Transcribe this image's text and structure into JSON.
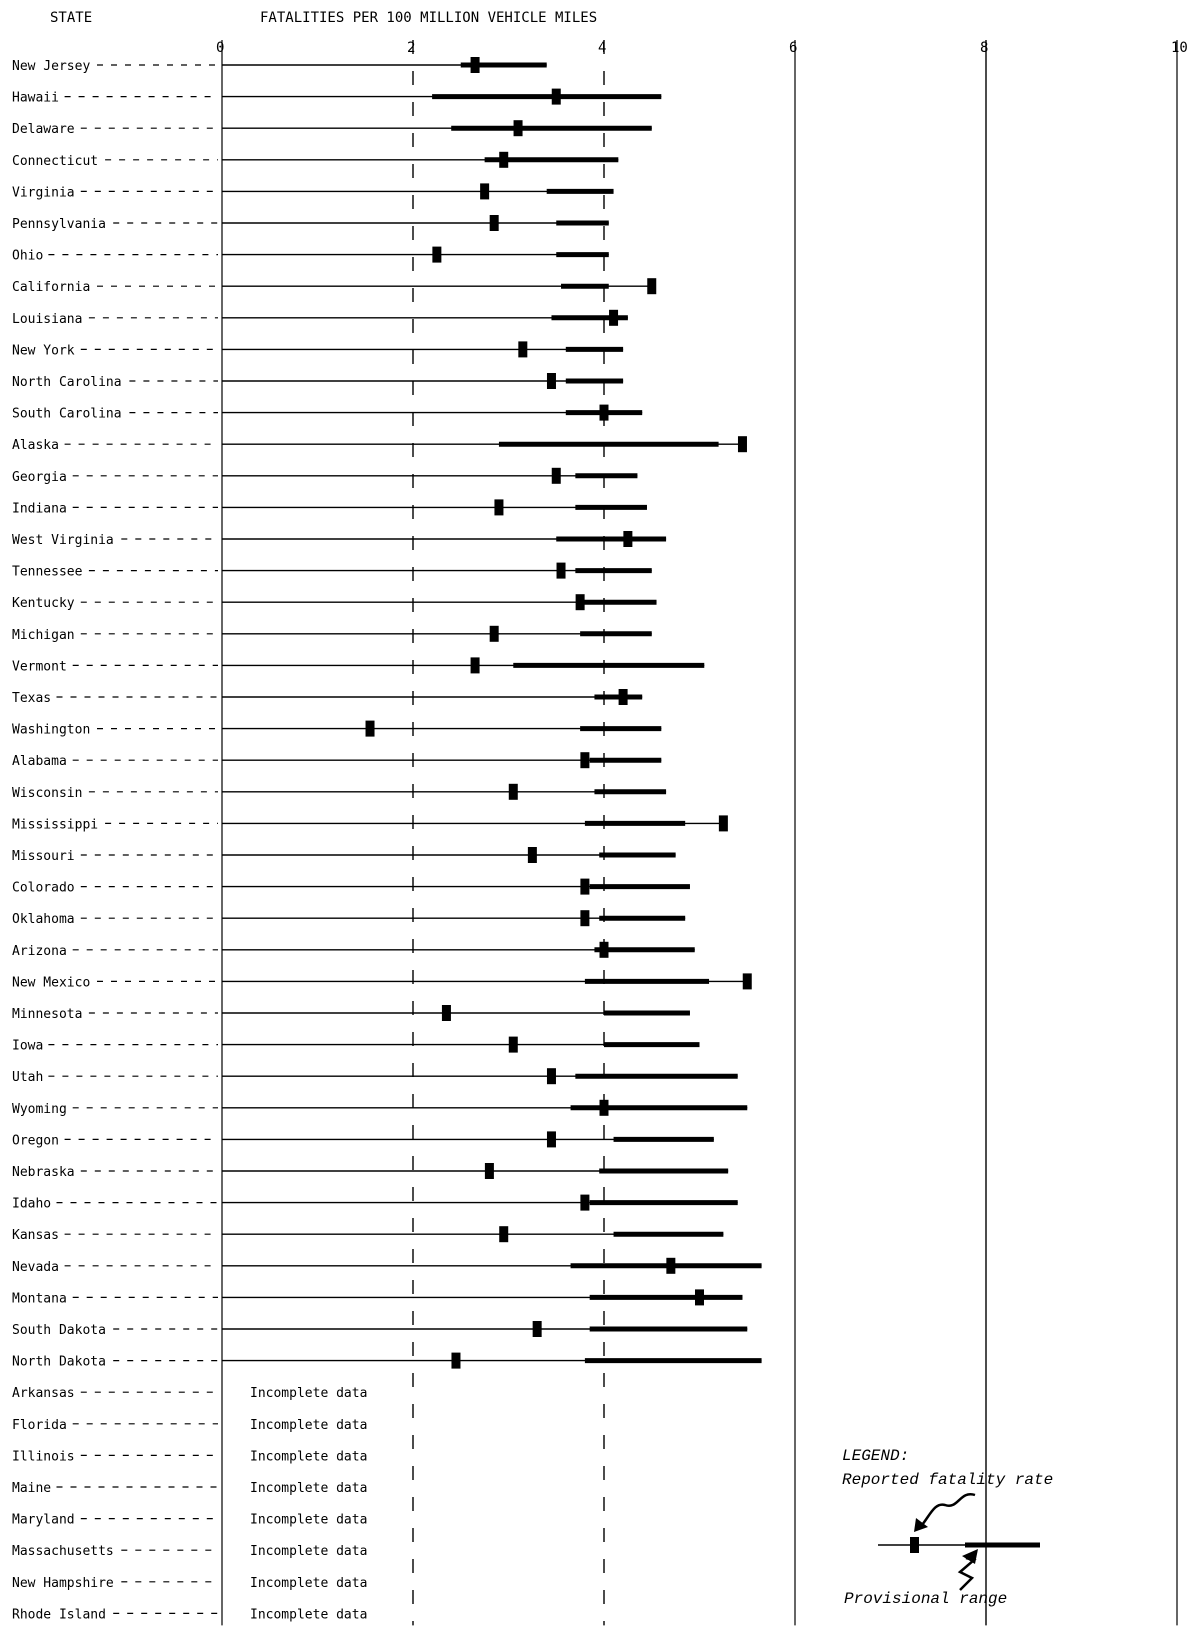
{
  "chart_data": {
    "type": "range-dot",
    "title": "FATALITIES PER 100 MILLION VEHICLE MILES",
    "y_header": "STATE",
    "x_ticks": [
      "0",
      "2",
      "4",
      "6",
      "8",
      "10"
    ],
    "xlim": [
      0,
      10
    ],
    "incomplete_label": "Incomplete data",
    "states": [
      {
        "name": "New Jersey",
        "rate": 2.65,
        "low": 2.5,
        "high": 3.4
      },
      {
        "name": "Hawaii",
        "rate": 3.5,
        "low": 2.2,
        "high": 4.6
      },
      {
        "name": "Delaware",
        "rate": 3.1,
        "low": 2.4,
        "high": 4.5
      },
      {
        "name": "Connecticut",
        "rate": 2.95,
        "low": 2.75,
        "high": 4.15
      },
      {
        "name": "Virginia",
        "rate": 2.75,
        "low": 3.4,
        "high": 4.1
      },
      {
        "name": "Pennsylvania",
        "rate": 2.85,
        "low": 3.5,
        "high": 4.05
      },
      {
        "name": "Ohio",
        "rate": 2.25,
        "low": 3.5,
        "high": 4.05
      },
      {
        "name": "California",
        "rate": 4.5,
        "low": 3.55,
        "high": 4.05
      },
      {
        "name": "Louisiana",
        "rate": 4.1,
        "low": 3.45,
        "high": 4.25
      },
      {
        "name": "New York",
        "rate": 3.15,
        "low": 3.6,
        "high": 4.2
      },
      {
        "name": "North Carolina",
        "rate": 3.45,
        "low": 3.6,
        "high": 4.2
      },
      {
        "name": "South Carolina",
        "rate": 4.0,
        "low": 3.6,
        "high": 4.4
      },
      {
        "name": "Alaska",
        "rate": 5.45,
        "low": 2.9,
        "high": 5.2
      },
      {
        "name": "Georgia",
        "rate": 3.5,
        "low": 3.7,
        "high": 4.35
      },
      {
        "name": "Indiana",
        "rate": 2.9,
        "low": 3.7,
        "high": 4.45
      },
      {
        "name": "West Virginia",
        "rate": 4.25,
        "low": 3.5,
        "high": 4.65
      },
      {
        "name": "Tennessee",
        "rate": 3.55,
        "low": 3.7,
        "high": 4.5
      },
      {
        "name": "Kentucky",
        "rate": 3.75,
        "low": 3.75,
        "high": 4.55
      },
      {
        "name": "Michigan",
        "rate": 2.85,
        "low": 3.75,
        "high": 4.5
      },
      {
        "name": "Vermont",
        "rate": 2.65,
        "low": 3.05,
        "high": 5.05
      },
      {
        "name": "Texas",
        "rate": 4.2,
        "low": 3.9,
        "high": 4.4
      },
      {
        "name": "Washington",
        "rate": 1.55,
        "low": 3.75,
        "high": 4.6
      },
      {
        "name": "Alabama",
        "rate": 3.8,
        "low": 3.85,
        "high": 4.6
      },
      {
        "name": "Wisconsin",
        "rate": 3.05,
        "low": 3.9,
        "high": 4.65
      },
      {
        "name": "Mississippi",
        "rate": 5.25,
        "low": 3.8,
        "high": 4.85
      },
      {
        "name": "Missouri",
        "rate": 3.25,
        "low": 3.95,
        "high": 4.75
      },
      {
        "name": "Colorado",
        "rate": 3.8,
        "low": 3.85,
        "high": 4.9
      },
      {
        "name": "Oklahoma",
        "rate": 3.8,
        "low": 3.95,
        "high": 4.85
      },
      {
        "name": "Arizona",
        "rate": 4.0,
        "low": 3.9,
        "high": 4.95
      },
      {
        "name": "New Mexico",
        "rate": 5.5,
        "low": 3.8,
        "high": 5.1
      },
      {
        "name": "Minnesota",
        "rate": 2.35,
        "low": 4.0,
        "high": 4.9
      },
      {
        "name": "Iowa",
        "rate": 3.05,
        "low": 4.0,
        "high": 5.0
      },
      {
        "name": "Utah",
        "rate": 3.45,
        "low": 3.7,
        "high": 5.4
      },
      {
        "name": "Wyoming",
        "rate": 4.0,
        "low": 3.65,
        "high": 5.5
      },
      {
        "name": "Oregon",
        "rate": 3.45,
        "low": 4.1,
        "high": 5.15
      },
      {
        "name": "Nebraska",
        "rate": 2.8,
        "low": 3.95,
        "high": 5.3
      },
      {
        "name": "Idaho",
        "rate": 3.8,
        "low": 3.85,
        "high": 5.4
      },
      {
        "name": "Kansas",
        "rate": 2.95,
        "low": 4.1,
        "high": 5.25
      },
      {
        "name": "Nevada",
        "rate": 4.7,
        "low": 3.65,
        "high": 5.65
      },
      {
        "name": "Montana",
        "rate": 5.0,
        "low": 3.85,
        "high": 5.45
      },
      {
        "name": "South Dakota",
        "rate": 3.3,
        "low": 3.85,
        "high": 5.5
      },
      {
        "name": "North Dakota",
        "rate": 2.45,
        "low": 3.8,
        "high": 5.65
      },
      {
        "name": "Arkansas",
        "incomplete": true
      },
      {
        "name": "Florida",
        "incomplete": true
      },
      {
        "name": "Illinois",
        "incomplete": true
      },
      {
        "name": "Maine",
        "incomplete": true
      },
      {
        "name": "Maryland",
        "incomplete": true
      },
      {
        "name": "Massachusetts",
        "incomplete": true
      },
      {
        "name": "New Hampshire",
        "incomplete": true
      },
      {
        "name": "Rhode Island",
        "incomplete": true
      }
    ],
    "legend": {
      "title": "LEGEND:",
      "rate_label": "Reported fatality rate",
      "range_label": "Provisional range"
    },
    "colors": {
      "ink": "#000000",
      "background": "#ffffff"
    }
  }
}
